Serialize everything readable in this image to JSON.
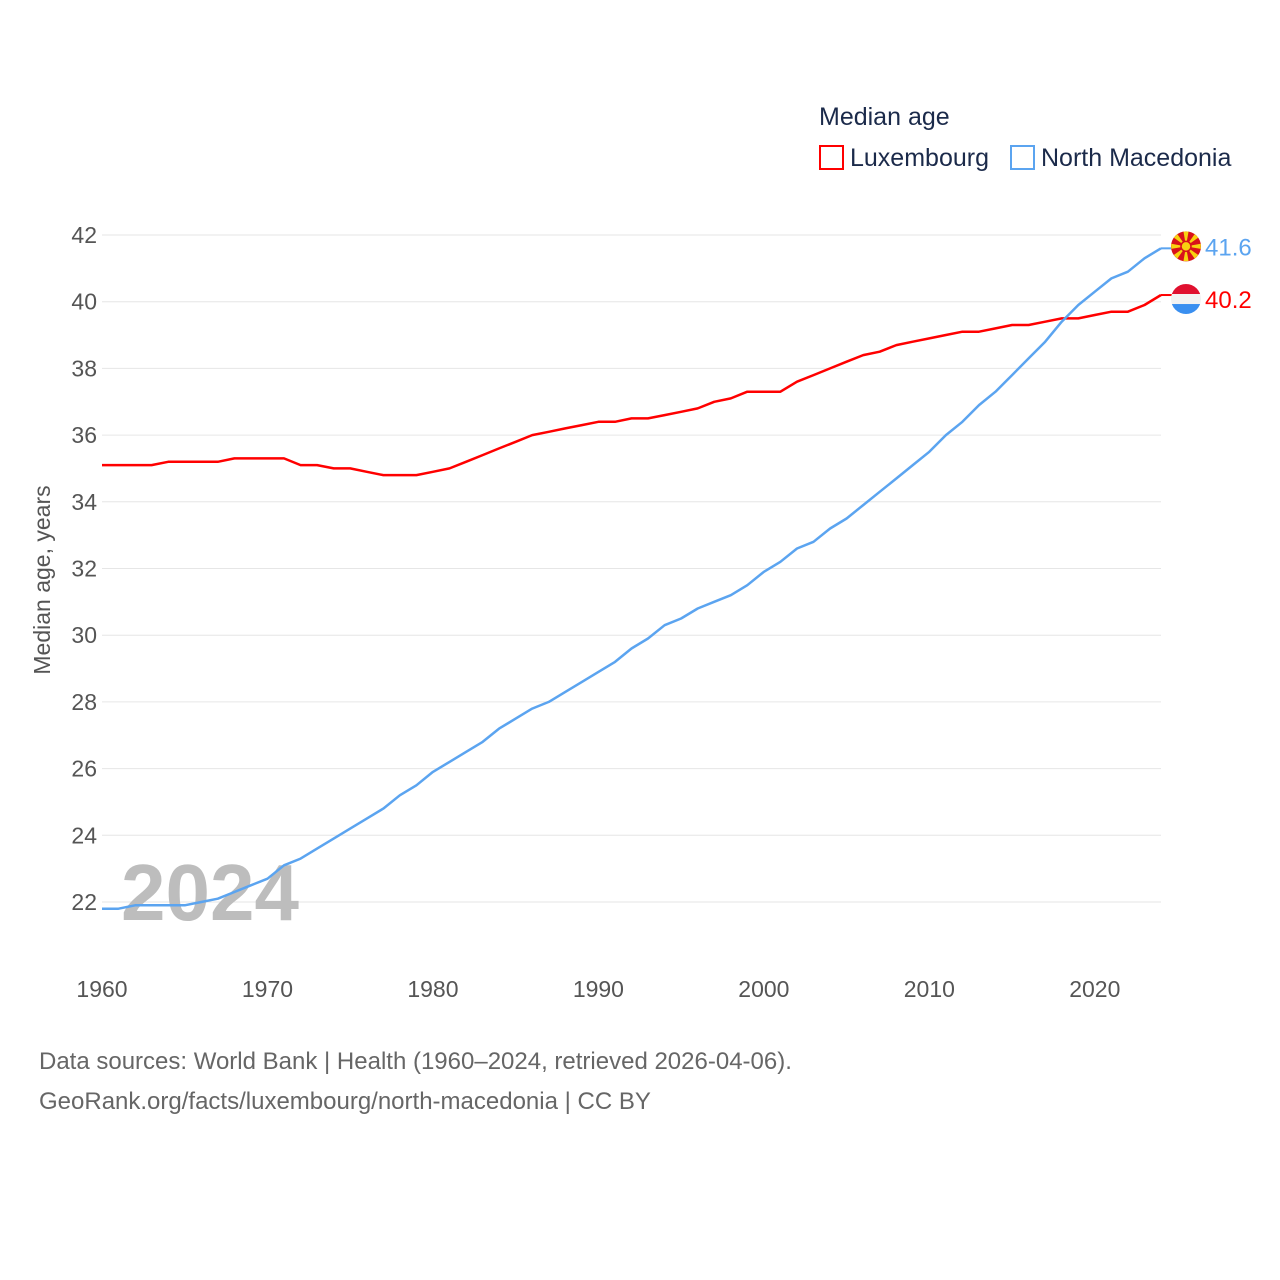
{
  "chart_data": {
    "type": "line",
    "title": "Median age",
    "ylabel": "Median age, years",
    "xlabel": "",
    "xlim": [
      1960,
      2024
    ],
    "ylim": [
      21,
      42.5
    ],
    "x_ticks": [
      1960,
      1970,
      1980,
      1990,
      2000,
      2010,
      2020
    ],
    "y_ticks": [
      22,
      24,
      26,
      28,
      30,
      32,
      34,
      36,
      38,
      40,
      42
    ],
    "grid": true,
    "legend_position": "top-right",
    "year_watermark": "2024",
    "x": [
      1960,
      1961,
      1962,
      1963,
      1964,
      1965,
      1966,
      1967,
      1968,
      1969,
      1970,
      1971,
      1972,
      1973,
      1974,
      1975,
      1976,
      1977,
      1978,
      1979,
      1980,
      1981,
      1982,
      1983,
      1984,
      1985,
      1986,
      1987,
      1988,
      1989,
      1990,
      1991,
      1992,
      1993,
      1994,
      1995,
      1996,
      1997,
      1998,
      1999,
      2000,
      2001,
      2002,
      2003,
      2004,
      2005,
      2006,
      2007,
      2008,
      2009,
      2010,
      2011,
      2012,
      2013,
      2014,
      2015,
      2016,
      2017,
      2018,
      2019,
      2020,
      2021,
      2022,
      2023,
      2024
    ],
    "series": [
      {
        "name": "Luxembourg",
        "color": "#ff0000",
        "end_label": "40.2",
        "values": [
          35.1,
          35.1,
          35.1,
          35.1,
          35.2,
          35.2,
          35.2,
          35.2,
          35.3,
          35.3,
          35.3,
          35.3,
          35.1,
          35.1,
          35.0,
          35.0,
          34.9,
          34.8,
          34.8,
          34.8,
          34.9,
          35.0,
          35.2,
          35.4,
          35.6,
          35.8,
          36.0,
          36.1,
          36.2,
          36.3,
          36.4,
          36.4,
          36.5,
          36.5,
          36.6,
          36.7,
          36.8,
          37.0,
          37.1,
          37.3,
          37.3,
          37.3,
          37.6,
          37.8,
          38.0,
          38.2,
          38.4,
          38.5,
          38.7,
          38.8,
          38.9,
          39.0,
          39.1,
          39.1,
          39.2,
          39.3,
          39.3,
          39.4,
          39.5,
          39.5,
          39.6,
          39.7,
          39.7,
          39.9,
          40.2
        ]
      },
      {
        "name": "North Macedonia",
        "color": "#5ba4f0",
        "end_label": "41.6",
        "values": [
          21.8,
          21.8,
          21.9,
          21.9,
          21.9,
          21.9,
          22.0,
          22.1,
          22.3,
          22.5,
          22.7,
          23.1,
          23.3,
          23.6,
          23.9,
          24.2,
          24.5,
          24.8,
          25.2,
          25.5,
          25.9,
          26.2,
          26.5,
          26.8,
          27.2,
          27.5,
          27.8,
          28.0,
          28.3,
          28.6,
          28.9,
          29.2,
          29.6,
          29.9,
          30.3,
          30.5,
          30.8,
          31.0,
          31.2,
          31.5,
          31.9,
          32.2,
          32.6,
          32.8,
          33.2,
          33.5,
          33.9,
          34.3,
          34.7,
          35.1,
          35.5,
          36.0,
          36.4,
          36.9,
          37.3,
          37.8,
          38.3,
          38.8,
          39.4,
          39.9,
          40.3,
          40.7,
          40.9,
          41.3,
          41.6
        ]
      }
    ]
  },
  "footer": {
    "line1": "Data sources: World Bank | Health (1960–2024, retrieved 2026-04-06).",
    "line2": "GeoRank.org/facts/luxembourg/north-macedonia | CC BY"
  }
}
